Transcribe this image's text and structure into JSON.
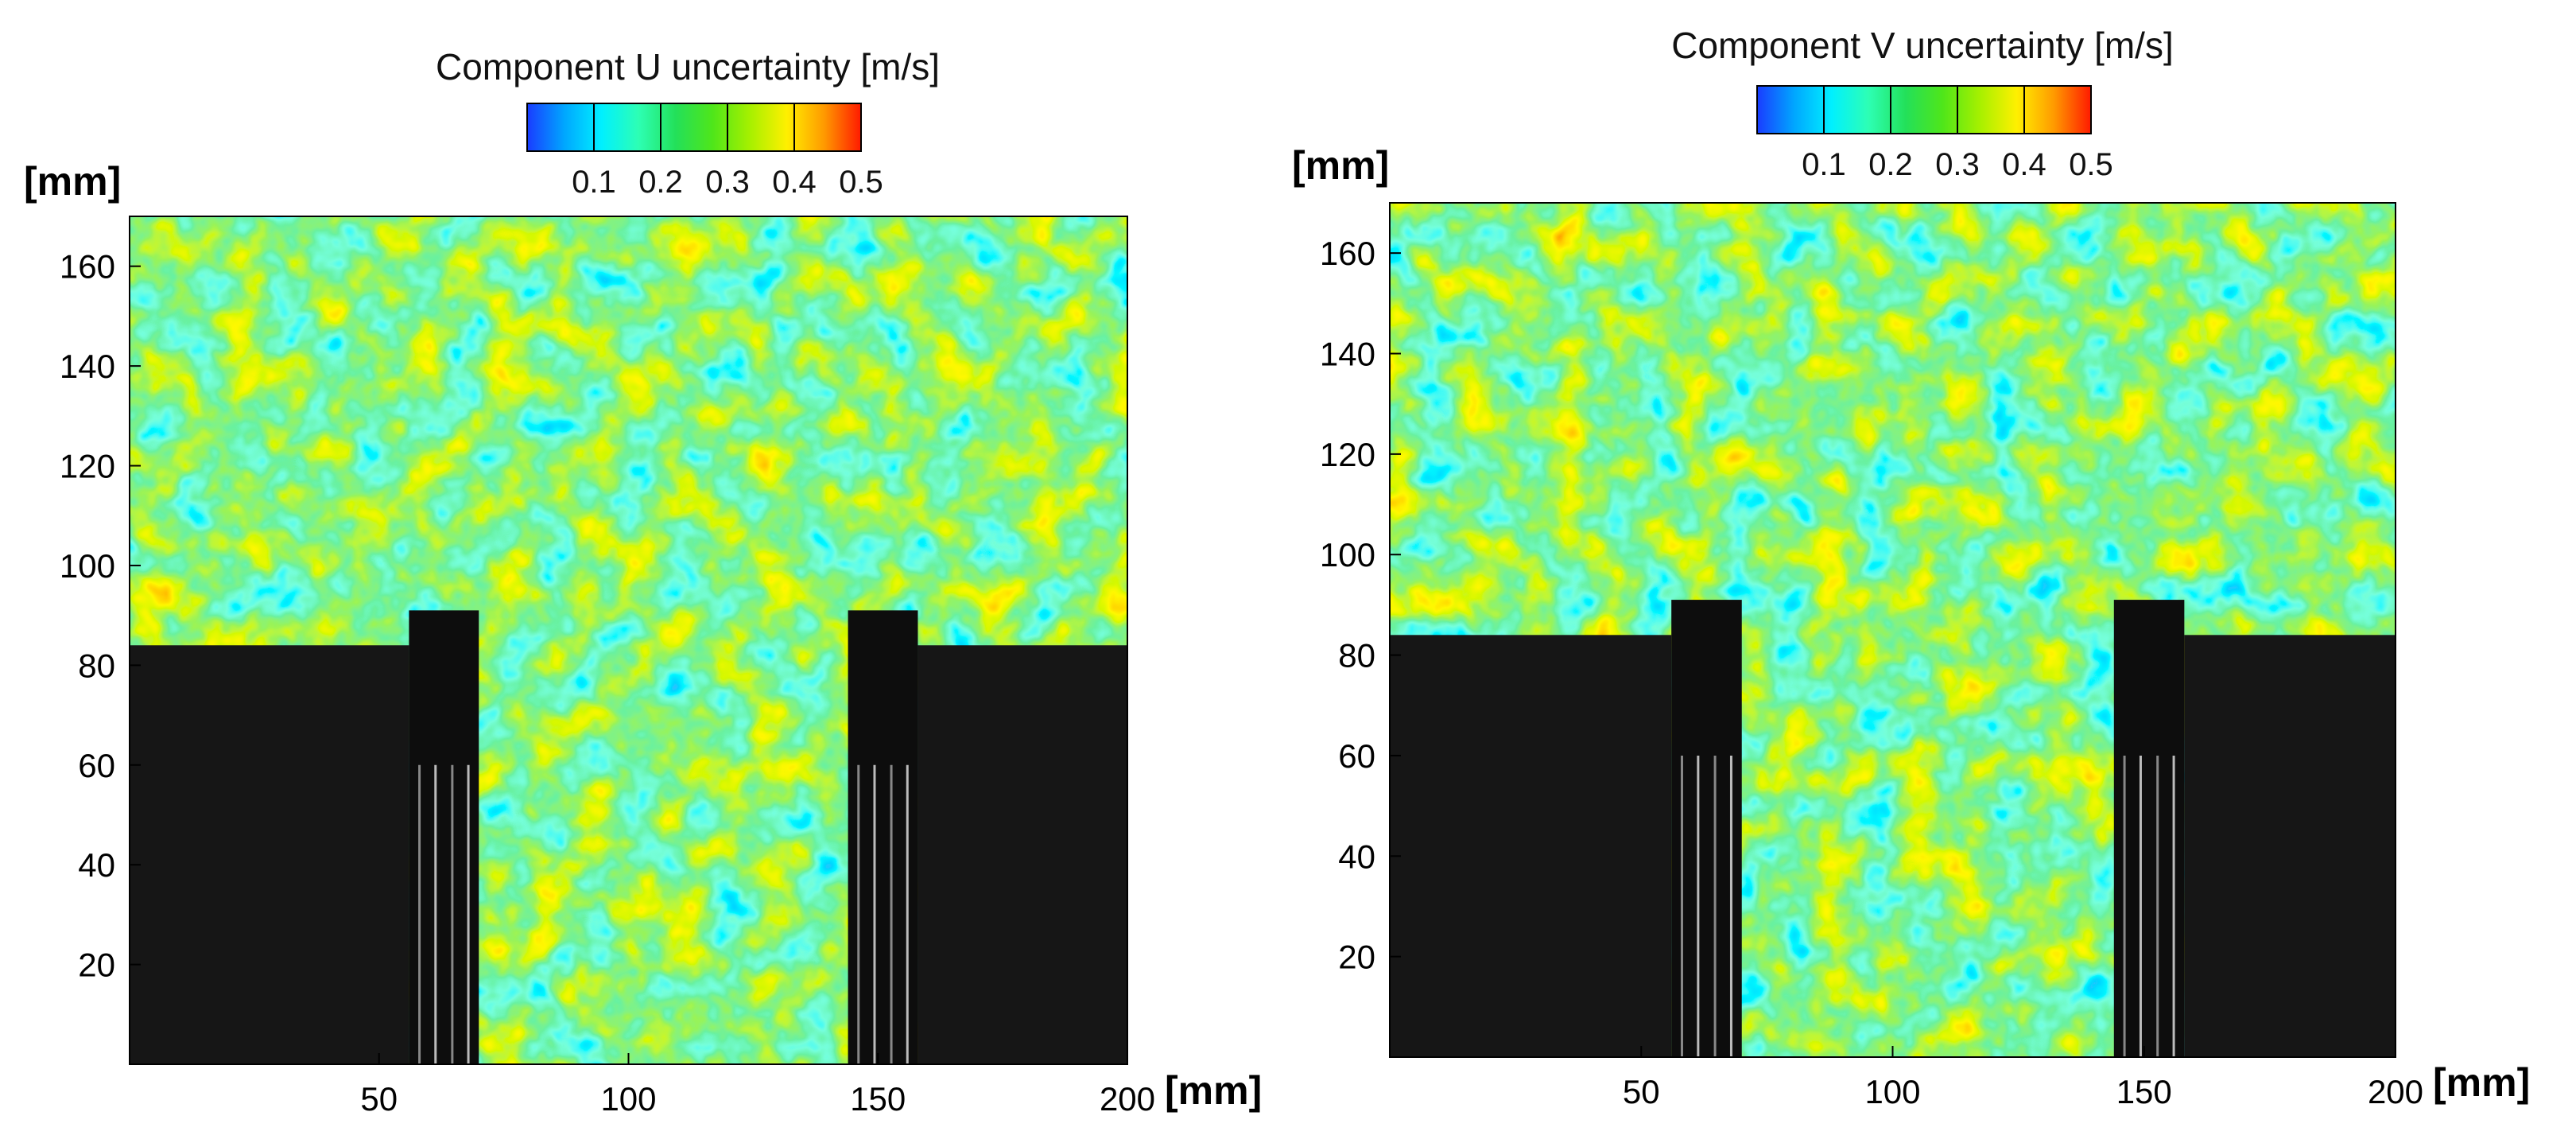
{
  "chart_data": [
    {
      "type": "heatmap",
      "title": "Component U uncertainty [m/s]",
      "xlabel": "[mm]",
      "ylabel": "[mm]",
      "xlim": [
        0,
        200
      ],
      "ylim": [
        0,
        170
      ],
      "x_ticks": [
        50,
        100,
        150,
        200
      ],
      "y_ticks": [
        20,
        40,
        60,
        80,
        100,
        120,
        140,
        160
      ],
      "colorbar": {
        "range": [
          0,
          0.5
        ],
        "ticks": [
          0.1,
          0.2,
          0.3,
          0.4,
          0.5
        ],
        "colors": [
          "#1a3cff",
          "#00a6ff",
          "#00f0ff",
          "#2dffb4",
          "#23e05a",
          "#4fe61a",
          "#a6f000",
          "#fff000",
          "#ff9a00",
          "#ff1a00"
        ]
      },
      "masked_regions": [
        {
          "name": "left-wall-block",
          "x": [
            0,
            56
          ],
          "y": [
            0,
            84
          ]
        },
        {
          "name": "left-jet-nozzle",
          "x": [
            56,
            70
          ],
          "y": [
            0,
            91
          ]
        },
        {
          "name": "right-jet-nozzle",
          "x": [
            144,
            158
          ],
          "y": [
            0,
            91
          ]
        },
        {
          "name": "right-wall-block",
          "x": [
            158,
            200
          ],
          "y": [
            0,
            84
          ]
        }
      ]
    },
    {
      "type": "heatmap",
      "title": "Component V uncertainty [m/s]",
      "xlabel": "[mm]",
      "ylabel": "[mm]",
      "xlim": [
        0,
        200
      ],
      "ylim": [
        0,
        170
      ],
      "x_ticks": [
        50,
        100,
        150,
        200
      ],
      "y_ticks": [
        20,
        40,
        60,
        80,
        100,
        120,
        140,
        160
      ],
      "colorbar": {
        "range": [
          0,
          0.5
        ],
        "ticks": [
          0.1,
          0.2,
          0.3,
          0.4,
          0.5
        ],
        "colors": [
          "#1a3cff",
          "#00a6ff",
          "#00f0ff",
          "#2dffb4",
          "#23e05a",
          "#4fe61a",
          "#a6f000",
          "#fff000",
          "#ff9a00",
          "#ff1a00"
        ]
      },
      "masked_regions": [
        {
          "name": "left-wall-block",
          "x": [
            0,
            56
          ],
          "y": [
            0,
            84
          ]
        },
        {
          "name": "left-jet-nozzle",
          "x": [
            56,
            70
          ],
          "y": [
            0,
            91
          ]
        },
        {
          "name": "right-jet-nozzle",
          "x": [
            144,
            158
          ],
          "y": [
            0,
            91
          ]
        },
        {
          "name": "right-wall-block",
          "x": [
            158,
            200
          ],
          "y": [
            0,
            84
          ]
        }
      ]
    }
  ]
}
